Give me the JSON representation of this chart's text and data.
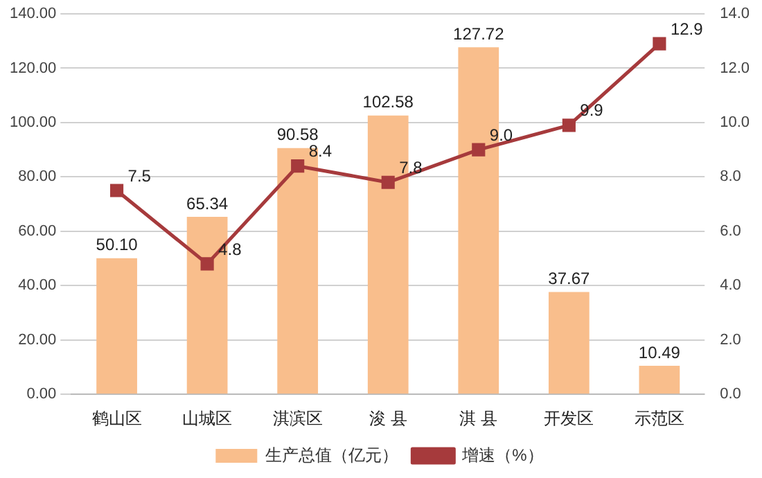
{
  "chart_data": {
    "type": "bar",
    "categories": [
      "鹤山区",
      "山城区",
      "淇滨区",
      "浚 县",
      "淇 县",
      "开发区",
      "示范区"
    ],
    "series": [
      {
        "name": "生产总值（亿元）",
        "color": "#f9be8c",
        "values": [
          50.1,
          65.34,
          90.58,
          102.58,
          127.72,
          37.67,
          10.49
        ],
        "value_labels": [
          "50.10",
          "65.34",
          "90.58",
          "102.58",
          "127.72",
          "37.67",
          "10.49"
        ]
      },
      {
        "name": "增速（%）",
        "type": "line",
        "axis": "y2",
        "color": "#a63a3c",
        "values": [
          7.5,
          4.8,
          8.4,
          7.8,
          9.0,
          9.9,
          12.9
        ],
        "value_labels": [
          "7.5",
          "4.8",
          "8.4",
          "7.8",
          "9.0",
          "9.9",
          "12.9"
        ]
      }
    ],
    "ylim": [
      0,
      140
    ],
    "yticks": [
      {
        "value": 0,
        "label": "0.00"
      },
      {
        "value": 20,
        "label": "20.00"
      },
      {
        "value": 40,
        "label": "40.00"
      },
      {
        "value": 60,
        "label": "60.00"
      },
      {
        "value": 80,
        "label": "80.00"
      },
      {
        "value": 100,
        "label": "100.00"
      },
      {
        "value": 120,
        "label": "120.00"
      },
      {
        "value": 140,
        "label": "140.00"
      }
    ],
    "y2lim": [
      0,
      14
    ],
    "y2ticks": [
      {
        "value": 0,
        "label": "0.0"
      },
      {
        "value": 2,
        "label": "2.0"
      },
      {
        "value": 4,
        "label": "4.0"
      },
      {
        "value": 6,
        "label": "6.0"
      },
      {
        "value": 8,
        "label": "8.0"
      },
      {
        "value": 10,
        "label": "10.0"
      },
      {
        "value": 12,
        "label": "12.0"
      },
      {
        "value": 14,
        "label": "14.0"
      }
    ],
    "grid": "y",
    "legend": "bottom",
    "marker": "square",
    "line_style": "solid"
  }
}
